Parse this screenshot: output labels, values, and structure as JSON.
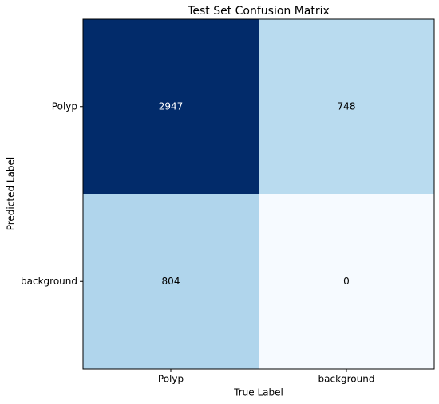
{
  "chart_data": {
    "type": "heatmap",
    "title": "Test Set Confusion Matrix",
    "xlabel": "True Label",
    "ylabel": "Predicted Label",
    "x_categories": [
      "Polyp",
      "background"
    ],
    "y_categories": [
      "Polyp",
      "background"
    ],
    "values": [
      [
        2947,
        748
      ],
      [
        804,
        0
      ]
    ],
    "colors": [
      [
        "#022b6a",
        "#b9dbef"
      ],
      [
        "#b0d5ec",
        "#f6faff"
      ]
    ],
    "text_colors": [
      [
        "#ffffff",
        "#000000"
      ],
      [
        "#000000",
        "#000000"
      ]
    ]
  }
}
